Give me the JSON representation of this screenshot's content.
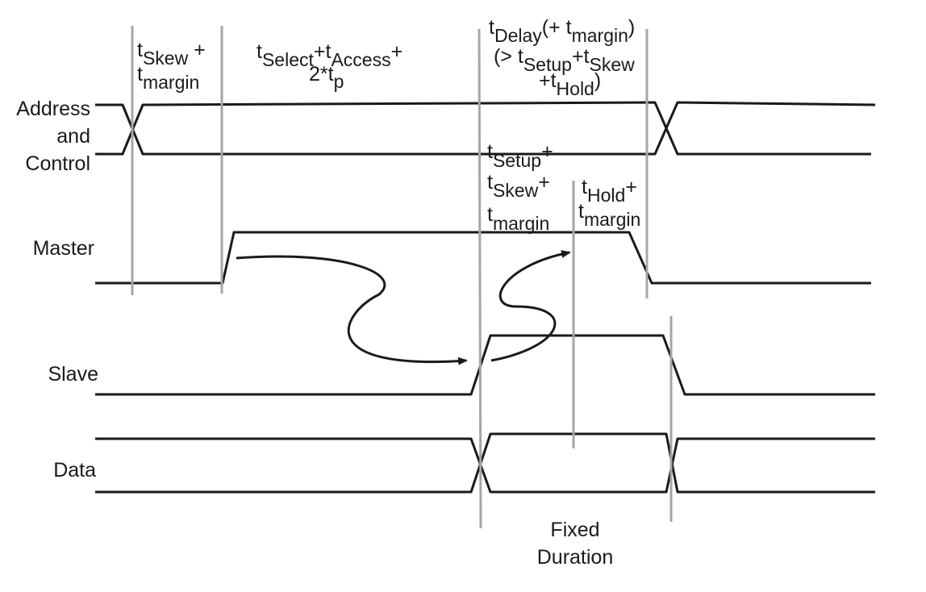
{
  "signals": {
    "address_line1": "Address",
    "address_line2": "and",
    "address_line3": "Control",
    "master": "Master",
    "slave": "Slave",
    "data": "Data"
  },
  "annotations": {
    "skew": {
      "t1": "t",
      "s1": "Skew",
      "p1": " +",
      "t2": "t",
      "s2": "margin"
    },
    "select_access": {
      "t1": "t",
      "s1": "Select",
      "p1": "+t",
      "s2": "Access",
      "p2": "+",
      "line2a": "2*t",
      "s3": "p"
    },
    "delay": {
      "t1": "t",
      "s1": "Delay",
      "p1": "(+ t",
      "s1b": "margin",
      "p1b": ")",
      "l2a": "(> t",
      "s2a": "Setup",
      "l2b": "+t",
      "s2b": "Skew",
      "l3a": "+t",
      "s3a": "Hold",
      "l3b": ")"
    },
    "setup": {
      "t1": "t",
      "s1": "Setup",
      "p1": "+",
      "t2": "t",
      "s2": "Skew",
      "p2": "+",
      "t3": "t",
      "s3": "margin"
    },
    "hold": {
      "t1": "t",
      "s1": "Hold",
      "p1": "+",
      "t2": "t",
      "s2": "margin"
    },
    "fixed_line1": "Fixed",
    "fixed_line2": "Duration"
  },
  "colors": {
    "signal": "#1a1a1a",
    "marker": "#a6a6a6",
    "background": "#ffffff"
  }
}
